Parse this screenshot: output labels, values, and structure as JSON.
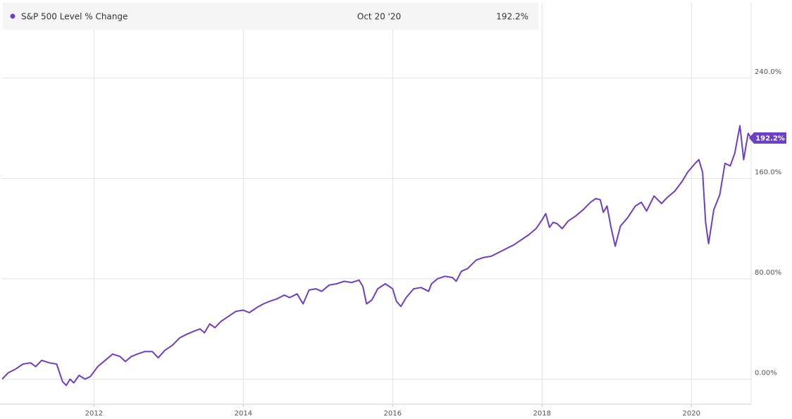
{
  "legend": {
    "series_name": "S&P 500 Level % Change",
    "date": "Oct 20 '20",
    "value": "192.2%"
  },
  "end_label": "192.2%",
  "colors": {
    "line": "#6b3fc8",
    "grid": "#e3e3e3",
    "legend_bg": "#f5f5f5",
    "axis_text": "#555555"
  },
  "chart_data": {
    "type": "line",
    "title": "",
    "xlabel": "",
    "ylabel": "",
    "xlim": [
      2010.77,
      2020.8
    ],
    "ylim": [
      -20,
      300
    ],
    "grid": true,
    "legend_position": "top-left",
    "x_ticks": [
      {
        "value": 2012,
        "label": "2012"
      },
      {
        "value": 2014,
        "label": "2014"
      },
      {
        "value": 2016,
        "label": "2016"
      },
      {
        "value": 2018,
        "label": "2018"
      },
      {
        "value": 2020,
        "label": "2020"
      }
    ],
    "y_ticks": [
      {
        "value": 0,
        "label": "0.00%"
      },
      {
        "value": 80,
        "label": "80.00%"
      },
      {
        "value": 160,
        "label": "160.0%"
      },
      {
        "value": 240,
        "label": "240.0%"
      }
    ],
    "series": [
      {
        "name": "S&P 500 Level % Change",
        "points": [
          [
            2010.77,
            0
          ],
          [
            2010.85,
            5
          ],
          [
            2010.95,
            8
          ],
          [
            2011.05,
            12
          ],
          [
            2011.15,
            13
          ],
          [
            2011.22,
            10
          ],
          [
            2011.3,
            15
          ],
          [
            2011.4,
            13
          ],
          [
            2011.5,
            12
          ],
          [
            2011.58,
            -2
          ],
          [
            2011.63,
            -5
          ],
          [
            2011.68,
            0
          ],
          [
            2011.73,
            -3
          ],
          [
            2011.8,
            3
          ],
          [
            2011.88,
            0
          ],
          [
            2011.95,
            2
          ],
          [
            2012.05,
            10
          ],
          [
            2012.15,
            15
          ],
          [
            2012.25,
            20
          ],
          [
            2012.35,
            18
          ],
          [
            2012.42,
            14
          ],
          [
            2012.5,
            18
          ],
          [
            2012.58,
            20
          ],
          [
            2012.68,
            22
          ],
          [
            2012.78,
            22
          ],
          [
            2012.86,
            17
          ],
          [
            2012.95,
            23
          ],
          [
            2013.05,
            27
          ],
          [
            2013.15,
            33
          ],
          [
            2013.25,
            36
          ],
          [
            2013.33,
            38
          ],
          [
            2013.42,
            40
          ],
          [
            2013.48,
            37
          ],
          [
            2013.55,
            44
          ],
          [
            2013.62,
            41
          ],
          [
            2013.7,
            46
          ],
          [
            2013.8,
            50
          ],
          [
            2013.9,
            54
          ],
          [
            2014.0,
            55
          ],
          [
            2014.08,
            53
          ],
          [
            2014.18,
            57
          ],
          [
            2014.27,
            60
          ],
          [
            2014.35,
            62
          ],
          [
            2014.45,
            64
          ],
          [
            2014.55,
            67
          ],
          [
            2014.62,
            65
          ],
          [
            2014.72,
            68
          ],
          [
            2014.8,
            60
          ],
          [
            2014.88,
            71
          ],
          [
            2014.97,
            72
          ],
          [
            2015.05,
            70
          ],
          [
            2015.15,
            75
          ],
          [
            2015.25,
            76
          ],
          [
            2015.35,
            78
          ],
          [
            2015.45,
            77
          ],
          [
            2015.55,
            79
          ],
          [
            2015.6,
            74
          ],
          [
            2015.65,
            60
          ],
          [
            2015.72,
            63
          ],
          [
            2015.8,
            72
          ],
          [
            2015.9,
            76
          ],
          [
            2016.0,
            72
          ],
          [
            2016.05,
            62
          ],
          [
            2016.11,
            58
          ],
          [
            2016.18,
            65
          ],
          [
            2016.28,
            72
          ],
          [
            2016.38,
            73
          ],
          [
            2016.48,
            70
          ],
          [
            2016.52,
            76
          ],
          [
            2016.6,
            80
          ],
          [
            2016.7,
            82
          ],
          [
            2016.8,
            81
          ],
          [
            2016.85,
            78
          ],
          [
            2016.92,
            86
          ],
          [
            2017.0,
            88
          ],
          [
            2017.12,
            95
          ],
          [
            2017.22,
            97
          ],
          [
            2017.32,
            98
          ],
          [
            2017.42,
            101
          ],
          [
            2017.52,
            104
          ],
          [
            2017.62,
            107
          ],
          [
            2017.72,
            111
          ],
          [
            2017.82,
            115
          ],
          [
            2017.92,
            120
          ],
          [
            2018.0,
            127
          ],
          [
            2018.05,
            132
          ],
          [
            2018.1,
            121
          ],
          [
            2018.15,
            125
          ],
          [
            2018.2,
            124
          ],
          [
            2018.27,
            120
          ],
          [
            2018.35,
            126
          ],
          [
            2018.45,
            130
          ],
          [
            2018.55,
            135
          ],
          [
            2018.65,
            141
          ],
          [
            2018.72,
            144
          ],
          [
            2018.78,
            143
          ],
          [
            2018.82,
            133
          ],
          [
            2018.87,
            138
          ],
          [
            2018.92,
            122
          ],
          [
            2018.98,
            106
          ],
          [
            2019.05,
            122
          ],
          [
            2019.15,
            129
          ],
          [
            2019.25,
            138
          ],
          [
            2019.33,
            141
          ],
          [
            2019.4,
            134
          ],
          [
            2019.5,
            146
          ],
          [
            2019.6,
            140
          ],
          [
            2019.68,
            145
          ],
          [
            2019.78,
            150
          ],
          [
            2019.88,
            158
          ],
          [
            2019.95,
            165
          ],
          [
            2020.05,
            172
          ],
          [
            2020.1,
            175
          ],
          [
            2020.15,
            165
          ],
          [
            2020.19,
            125
          ],
          [
            2020.23,
            108
          ],
          [
            2020.3,
            135
          ],
          [
            2020.38,
            147
          ],
          [
            2020.45,
            172
          ],
          [
            2020.52,
            170
          ],
          [
            2020.58,
            180
          ],
          [
            2020.65,
            202
          ],
          [
            2020.7,
            175
          ],
          [
            2020.76,
            196
          ],
          [
            2020.8,
            192.2
          ]
        ]
      }
    ]
  }
}
